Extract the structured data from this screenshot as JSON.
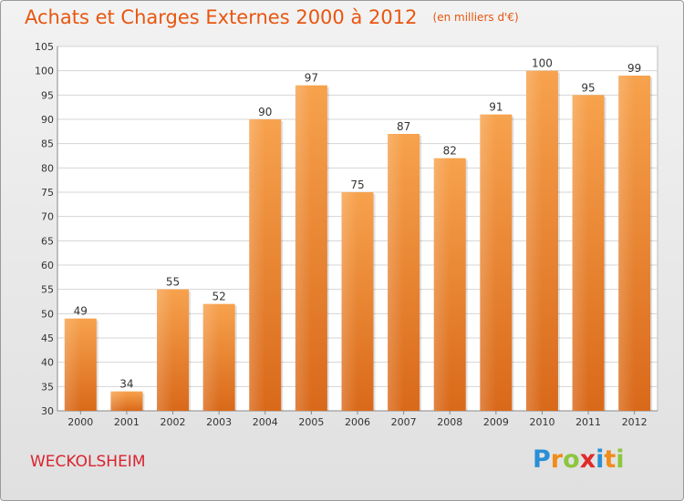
{
  "header": {
    "title": "Achats et Charges Externes 2000 à 2012",
    "subtitle": "(en milliers d'€)"
  },
  "footer": {
    "city": "WECKOLSHEIM",
    "logo_text": "Proxiti",
    "logo_colors": [
      "#2a8fd6",
      "#f08c1a",
      "#8cc63f",
      "#e02a2a",
      "#2a8fd6",
      "#f08c1a",
      "#8cc63f"
    ]
  },
  "chart_data": {
    "type": "bar",
    "categories": [
      "2000",
      "2001",
      "2002",
      "2003",
      "2004",
      "2005",
      "2006",
      "2007",
      "2008",
      "2009",
      "2010",
      "2011",
      "2012"
    ],
    "values": [
      49,
      34,
      55,
      52,
      90,
      97,
      75,
      87,
      82,
      91,
      100,
      95,
      99
    ],
    "ylim": [
      30,
      105
    ],
    "yticks": [
      30,
      35,
      40,
      45,
      50,
      55,
      60,
      65,
      70,
      75,
      80,
      85,
      90,
      95,
      100,
      105
    ],
    "grid": true,
    "bar_color": "#f08a2c",
    "data_labels": true
  }
}
